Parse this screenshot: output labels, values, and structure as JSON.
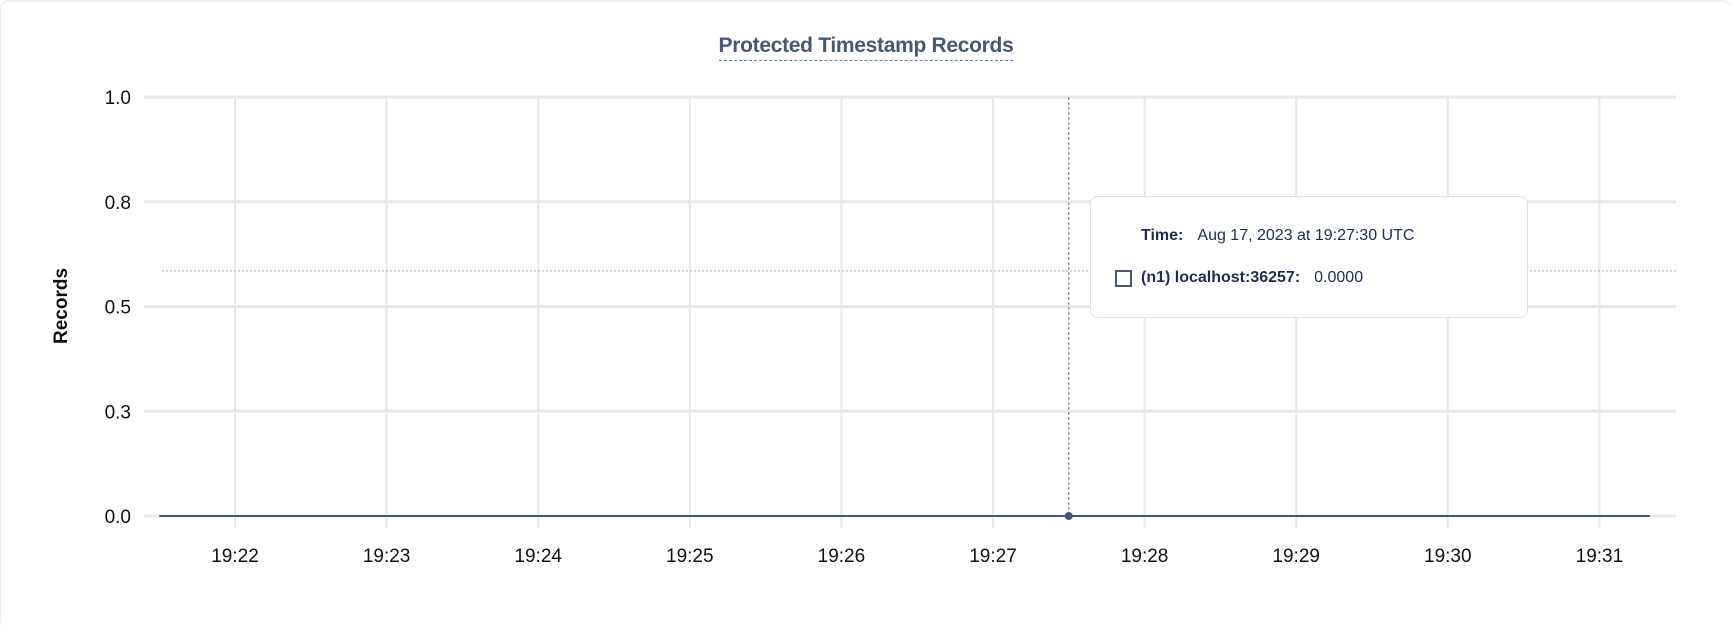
{
  "chart_data": {
    "type": "line",
    "title": "Protected Timestamp Records",
    "xlabel": "",
    "ylabel": "Records",
    "ylim": [
      0,
      1
    ],
    "y_ticks": [
      0,
      0.25,
      0.5,
      0.75,
      1.0
    ],
    "y_tick_labels": [
      "0.0",
      "0.3",
      "0.5",
      "0.8",
      "1.0"
    ],
    "x_range": [
      "19:21:30",
      "19:31:20"
    ],
    "x_tick_labels": [
      "19:22",
      "19:23",
      "19:24",
      "19:25",
      "19:26",
      "19:27",
      "19:28",
      "19:29",
      "19:30",
      "19:31"
    ],
    "grid": true,
    "series": [
      {
        "name": "(n1) localhost:36257",
        "color": "#475872",
        "x": [
          "19:21:30",
          "19:22:00",
          "19:22:30",
          "19:23:00",
          "19:23:30",
          "19:24:00",
          "19:24:30",
          "19:25:00",
          "19:25:30",
          "19:26:00",
          "19:26:30",
          "19:27:00",
          "19:27:30",
          "19:28:00",
          "19:28:30",
          "19:29:00",
          "19:29:30",
          "19:30:00",
          "19:30:30",
          "19:31:00",
          "19:31:20"
        ],
        "values": [
          0,
          0,
          0,
          0,
          0,
          0,
          0,
          0,
          0,
          0,
          0,
          0,
          0,
          0,
          0,
          0,
          0,
          0,
          0,
          0,
          0
        ]
      }
    ],
    "reference_line": 0.585,
    "hover": {
      "time_label": "Time:",
      "time_value": "Aug 17, 2023 at 19:27:30 UTC",
      "x": "19:27:30",
      "series_label": "(n1) localhost:36257:",
      "series_value": "0.0000"
    }
  }
}
